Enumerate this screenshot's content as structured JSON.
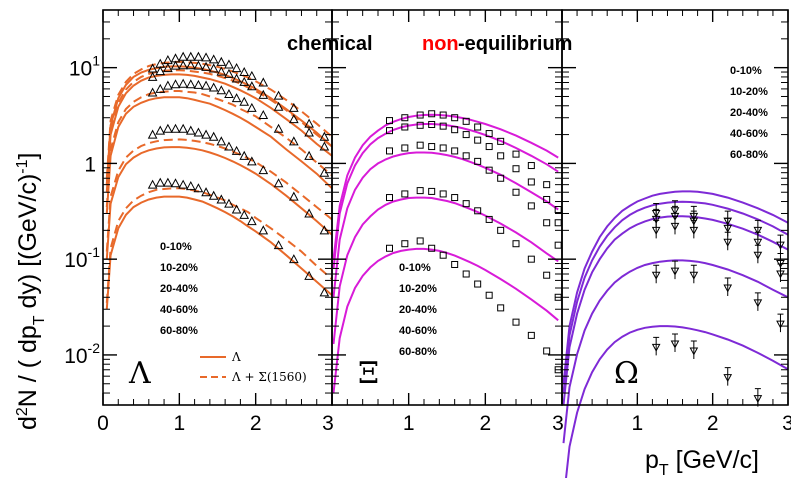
{
  "title_parts": [
    "chemical",
    "non",
    "-equilibrium"
  ],
  "colors": {
    "lambda": "#e8692a",
    "xi": "#d81bd8",
    "omega": "#7e2ad6",
    "accent": "#ff0000",
    "axis": "#000000"
  },
  "ylabel": "d²N / (dp_T dy)   [(GeV/c)⁻¹]",
  "ylabel_parts": {
    "a": "d",
    "b": "2",
    "c": "N / ( dp",
    "d": "T",
    "e": " dy)    [(GeV/c)",
    "f": "-1",
    "g": "]"
  },
  "xlabel_parts": {
    "a": "p",
    "b": "T",
    "c": " [GeV/c]"
  },
  "chart_data": {
    "type": "scatter",
    "yscale": "log",
    "ylim": [
      0.003,
      40
    ],
    "yticks": [
      {
        "v": 0.01,
        "label": "10",
        "exp": "-2"
      },
      {
        "v": 0.1,
        "label": "10",
        "exp": "-1"
      },
      {
        "v": 1,
        "label": "1",
        "exp": ""
      },
      {
        "v": 10,
        "label": "10",
        "exp": "1"
      }
    ],
    "panels": [
      {
        "particle": "Λ",
        "xlim": [
          0,
          3
        ],
        "xticks": [
          "0",
          "1",
          "2",
          "3"
        ],
        "centralities": [
          "0-10%",
          "10-20%",
          "20-40%",
          "40-60%",
          "60-80%"
        ],
        "legend": [
          "Λ",
          "Λ + Σ(1560)"
        ],
        "data_x": [
          0.65,
          0.75,
          0.85,
          0.95,
          1.05,
          1.15,
          1.25,
          1.35,
          1.45,
          1.55,
          1.65,
          1.75,
          1.85,
          1.95,
          2.1,
          2.3,
          2.5,
          2.7,
          2.9
        ],
        "data": [
          [
            9.8,
            11,
            12,
            12.5,
            13,
            13,
            13,
            12.8,
            12.2,
            11.5,
            10.8,
            9.9,
            9,
            8.2,
            7,
            5.1,
            3.8,
            2.6,
            1.9
          ],
          [
            8,
            9.2,
            9.9,
            10.5,
            10.6,
            10.6,
            10.5,
            10.2,
            9.8,
            9.1,
            8.6,
            7.7,
            7.1,
            6.4,
            5.2,
            3.9,
            2.9,
            2.1,
            1.5
          ],
          [
            5.5,
            6,
            6.5,
            6.7,
            6.8,
            6.7,
            6.6,
            6.5,
            6.2,
            5.8,
            5.3,
            4.8,
            4.4,
            3.8,
            3.2,
            2.3,
            1.7,
            1.2,
            0.8
          ],
          [
            2,
            2.2,
            2.3,
            2.3,
            2.3,
            2.2,
            2.1,
            2,
            1.9,
            1.7,
            1.5,
            1.35,
            1.2,
            1.05,
            0.85,
            0.62,
            0.45,
            0.3,
            0.2
          ],
          [
            0.6,
            0.63,
            0.63,
            0.62,
            0.6,
            0.58,
            0.55,
            0.5,
            0.46,
            0.42,
            0.38,
            0.33,
            0.29,
            0.25,
            0.2,
            0.14,
            0.1,
            0.067,
            0.045
          ]
        ],
        "curve_x": [
          0.05,
          0.1,
          0.2,
          0.3,
          0.4,
          0.5,
          0.6,
          0.7,
          0.8,
          0.9,
          1,
          1.1,
          1.2,
          1.3,
          1.4,
          1.5,
          1.6,
          1.7,
          1.8,
          1.9,
          2,
          2.2,
          2.4,
          2.6,
          2.8,
          3
        ],
        "curves_solid": [
          [
            0.6,
            2.5,
            4.8,
            6.6,
            8,
            8.9,
            9.5,
            9.9,
            10.2,
            10.3,
            10.3,
            10.2,
            10,
            9.7,
            9.3,
            8.9,
            8.4,
            7.8,
            7.2,
            6.6,
            6,
            4.8,
            3.7,
            2.8,
            2.1,
            1.5
          ],
          [
            0.5,
            2,
            3.9,
            5.4,
            6.5,
            7.3,
            7.9,
            8.2,
            8.4,
            8.5,
            8.5,
            8.4,
            8.2,
            7.9,
            7.6,
            7.2,
            6.8,
            6.3,
            5.8,
            5.3,
            4.8,
            3.8,
            2.9,
            2.2,
            1.6,
            1.2
          ],
          [
            0.3,
            1.2,
            2.4,
            3.3,
            3.9,
            4.3,
            4.6,
            4.8,
            4.9,
            4.9,
            4.9,
            4.8,
            4.6,
            4.4,
            4.2,
            3.9,
            3.6,
            3.3,
            3,
            2.7,
            2.4,
            1.9,
            1.4,
            1.05,
            0.78,
            0.55
          ],
          [
            0.1,
            0.38,
            0.72,
            0.98,
            1.15,
            1.28,
            1.37,
            1.43,
            1.47,
            1.48,
            1.48,
            1.46,
            1.42,
            1.37,
            1.3,
            1.22,
            1.14,
            1.05,
            0.96,
            0.87,
            0.78,
            0.61,
            0.46,
            0.34,
            0.25,
            0.18
          ],
          [
            0.03,
            0.11,
            0.21,
            0.29,
            0.35,
            0.39,
            0.42,
            0.44,
            0.45,
            0.45,
            0.45,
            0.44,
            0.42,
            0.4,
            0.37,
            0.34,
            0.31,
            0.28,
            0.25,
            0.22,
            0.195,
            0.15,
            0.11,
            0.08,
            0.058,
            0.042
          ]
        ],
        "curves_dashed": [
          [
            0.7,
            2.8,
            5.2,
            7.1,
            8.6,
            9.6,
            10.4,
            10.9,
            11.2,
            11.4,
            11.5,
            11.4,
            11.2,
            11,
            10.6,
            10.2,
            9.7,
            9.1,
            8.5,
            7.9,
            7.2,
            5.9,
            4.6,
            3.5,
            2.6,
            1.9
          ],
          [
            0.6,
            2.3,
            4.3,
            5.9,
            7.1,
            8,
            8.6,
            9,
            9.3,
            9.4,
            9.4,
            9.3,
            9.1,
            8.9,
            8.6,
            8.2,
            7.8,
            7.3,
            6.8,
            6.2,
            5.7,
            4.6,
            3.6,
            2.7,
            2,
            1.5
          ],
          [
            0.35,
            1.4,
            2.7,
            3.7,
            4.4,
            4.9,
            5.3,
            5.5,
            5.6,
            5.7,
            5.7,
            5.6,
            5.5,
            5.3,
            5,
            4.7,
            4.4,
            4.1,
            3.7,
            3.4,
            3.1,
            2.4,
            1.85,
            1.4,
            1.02,
            0.75
          ],
          [
            0.12,
            0.45,
            0.84,
            1.15,
            1.36,
            1.52,
            1.63,
            1.7,
            1.75,
            1.77,
            1.78,
            1.76,
            1.72,
            1.67,
            1.6,
            1.52,
            1.43,
            1.33,
            1.23,
            1.13,
            1.03,
            0.82,
            0.63,
            0.47,
            0.35,
            0.26
          ],
          [
            0.035,
            0.13,
            0.25,
            0.34,
            0.41,
            0.46,
            0.5,
            0.53,
            0.54,
            0.55,
            0.55,
            0.54,
            0.52,
            0.5,
            0.47,
            0.44,
            0.41,
            0.37,
            0.34,
            0.31,
            0.27,
            0.21,
            0.16,
            0.12,
            0.085,
            0.062
          ]
        ]
      },
      {
        "particle": "Ξ",
        "xlim": [
          0,
          3
        ],
        "xticks": [
          "",
          "1",
          "2",
          "3"
        ],
        "centralities": [
          "0-10%",
          "10-20%",
          "20-40%",
          "40-60%",
          "60-80%"
        ],
        "data_x": [
          0.75,
          0.95,
          1.15,
          1.3,
          1.45,
          1.6,
          1.75,
          1.9,
          2.05,
          2.2,
          2.4,
          2.6,
          2.8,
          2.95
        ],
        "data": [
          [
            2.8,
            3,
            3.2,
            3.3,
            3.2,
            3,
            2.75,
            2.4,
            2.05,
            1.7,
            1.25,
            0.95,
            0.6,
            0.33
          ],
          [
            2.2,
            2.4,
            2.5,
            2.55,
            2.45,
            2.25,
            2,
            1.75,
            1.5,
            1.2,
            0.88,
            0.64,
            0.42,
            0.24
          ],
          [
            1.35,
            1.45,
            1.55,
            1.5,
            1.45,
            1.35,
            1.2,
            1.05,
            0.85,
            0.7,
            0.5,
            0.36,
            0.24,
            0.14
          ],
          [
            0.44,
            0.48,
            0.52,
            0.51,
            0.48,
            0.44,
            0.38,
            0.32,
            0.26,
            0.2,
            0.145,
            0.1,
            0.068,
            0.04
          ],
          [
            0.13,
            0.145,
            0.155,
            0.13,
            0.11,
            0.088,
            0.07,
            0.055,
            0.042,
            0.031,
            0.022,
            0.016,
            0.011,
            0.007
          ]
        ],
        "curve_x": [
          0.02,
          0.1,
          0.2,
          0.3,
          0.4,
          0.5,
          0.6,
          0.7,
          0.8,
          0.9,
          1,
          1.1,
          1.2,
          1.3,
          1.4,
          1.5,
          1.6,
          1.7,
          1.8,
          1.9,
          2,
          2.2,
          2.4,
          2.6,
          2.8,
          2.95
        ],
        "curves_solid": [
          [
            0.1,
            0.36,
            0.75,
            1.15,
            1.55,
            1.9,
            2.2,
            2.5,
            2.72,
            2.9,
            3.05,
            3.15,
            3.2,
            3.22,
            3.2,
            3.16,
            3.08,
            2.98,
            2.86,
            2.72,
            2.58,
            2.27,
            1.95,
            1.64,
            1.36,
            1.15
          ],
          [
            0.08,
            0.3,
            0.62,
            0.95,
            1.28,
            1.58,
            1.84,
            2.05,
            2.24,
            2.38,
            2.48,
            2.55,
            2.58,
            2.58,
            2.55,
            2.5,
            2.43,
            2.34,
            2.23,
            2.11,
            1.98,
            1.72,
            1.45,
            1.2,
            0.98,
            0.82
          ],
          [
            0.04,
            0.16,
            0.34,
            0.53,
            0.71,
            0.87,
            1,
            1.1,
            1.18,
            1.24,
            1.28,
            1.3,
            1.3,
            1.29,
            1.26,
            1.22,
            1.17,
            1.11,
            1.04,
            0.97,
            0.9,
            0.76,
            0.62,
            0.5,
            0.4,
            0.33
          ],
          [
            0.013,
            0.052,
            0.11,
            0.17,
            0.23,
            0.28,
            0.33,
            0.37,
            0.4,
            0.42,
            0.435,
            0.44,
            0.44,
            0.435,
            0.42,
            0.405,
            0.385,
            0.36,
            0.335,
            0.31,
            0.285,
            0.235,
            0.19,
            0.15,
            0.115,
            0.095
          ],
          [
            0.004,
            0.015,
            0.032,
            0.05,
            0.067,
            0.082,
            0.096,
            0.107,
            0.116,
            0.122,
            0.126,
            0.128,
            0.128,
            0.126,
            0.122,
            0.116,
            0.109,
            0.101,
            0.093,
            0.085,
            0.077,
            0.062,
            0.049,
            0.038,
            0.029,
            0.023
          ]
        ]
      },
      {
        "particle": "Ω",
        "xlim": [
          0,
          3
        ],
        "xticks": [
          "",
          "1",
          "2",
          "3"
        ],
        "centralities": [
          "0-10%",
          "10-20%",
          "20-40%",
          "40-60%",
          "60-80%"
        ],
        "data_x": [
          1.25,
          1.5,
          1.75,
          2.2,
          2.6,
          2.9
        ],
        "data": [
          [
            0.3,
            0.32,
            0.28,
            0.25,
            0.2,
            0.14
          ],
          [
            0.26,
            0.28,
            0.25,
            0.21,
            0.15,
            0.09
          ],
          [
            0.2,
            0.22,
            0.2,
            0.15,
            0.11,
            0.07
          ],
          [
            0.068,
            0.075,
            0.068,
            0.05,
            0.035,
            0.021
          ],
          [
            0.012,
            0.013,
            0.011,
            0.0058,
            0.0035,
            null
          ]
        ],
        "curve_x": [
          0.02,
          0.1,
          0.2,
          0.3,
          0.4,
          0.5,
          0.6,
          0.7,
          0.8,
          0.9,
          1,
          1.1,
          1.2,
          1.3,
          1.4,
          1.5,
          1.6,
          1.7,
          1.8,
          1.9,
          2,
          2.2,
          2.4,
          2.6,
          2.8,
          3
        ],
        "curves_solid": [
          [
            0.005,
            0.02,
            0.045,
            0.08,
            0.12,
            0.17,
            0.22,
            0.27,
            0.32,
            0.36,
            0.4,
            0.43,
            0.46,
            0.48,
            0.495,
            0.505,
            0.51,
            0.51,
            0.505,
            0.495,
            0.48,
            0.44,
            0.39,
            0.34,
            0.29,
            0.24
          ],
          [
            0.004,
            0.016,
            0.036,
            0.064,
            0.097,
            0.135,
            0.175,
            0.215,
            0.255,
            0.29,
            0.32,
            0.345,
            0.365,
            0.38,
            0.39,
            0.395,
            0.397,
            0.395,
            0.39,
            0.382,
            0.37,
            0.337,
            0.3,
            0.26,
            0.22,
            0.18
          ],
          [
            0.003,
            0.012,
            0.027,
            0.048,
            0.073,
            0.1,
            0.13,
            0.16,
            0.185,
            0.21,
            0.23,
            0.248,
            0.262,
            0.272,
            0.278,
            0.281,
            0.281,
            0.278,
            0.273,
            0.266,
            0.257,
            0.234,
            0.208,
            0.18,
            0.152,
            0.126
          ],
          [
            0.0012,
            0.0046,
            0.0102,
            0.018,
            0.027,
            0.037,
            0.047,
            0.057,
            0.066,
            0.074,
            0.081,
            0.087,
            0.091,
            0.094,
            0.096,
            0.097,
            0.097,
            0.096,
            0.094,
            0.091,
            0.087,
            0.078,
            0.068,
            0.058,
            0.048,
            0.04
          ],
          [
            0.0003,
            0.0011,
            0.0025,
            0.0044,
            0.0066,
            0.009,
            0.0114,
            0.0136,
            0.0155,
            0.0171,
            0.0183,
            0.0192,
            0.0197,
            0.02,
            0.02,
            0.0198,
            0.0194,
            0.0188,
            0.0181,
            0.0173,
            0.0164,
            0.0145,
            0.0125,
            0.0105,
            0.0087,
            0.0071
          ]
        ]
      }
    ]
  }
}
